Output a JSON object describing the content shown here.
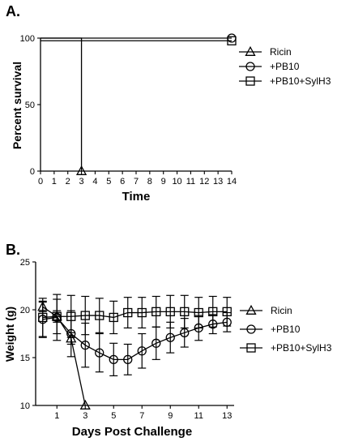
{
  "chart_data": [
    {
      "panel_label": "A.",
      "type": "line",
      "xlabel": "Time",
      "ylabel": "Percent survival",
      "xlim": [
        0,
        14
      ],
      "ylim": [
        0,
        100
      ],
      "x_ticks": [
        0,
        1,
        2,
        3,
        4,
        5,
        6,
        7,
        8,
        9,
        10,
        11,
        12,
        13,
        14
      ],
      "y_ticks": [
        0,
        50,
        100
      ],
      "grid": false,
      "legend_position": "top-right",
      "series": [
        {
          "name": "Ricin",
          "marker": "triangle",
          "x": [
            0,
            3,
            3
          ],
          "y": [
            100,
            100,
            0
          ]
        },
        {
          "name": "+PB10",
          "marker": "circle",
          "x": [
            0,
            14
          ],
          "y": [
            100,
            100
          ]
        },
        {
          "name": "+PB10+SylH3",
          "marker": "square",
          "x": [
            0,
            14
          ],
          "y": [
            98,
            98
          ]
        }
      ]
    },
    {
      "panel_label": "B.",
      "type": "line",
      "xlabel": "Days Post  Challenge",
      "ylabel": "Weight (g)",
      "xlim": [
        -0.5,
        13.5
      ],
      "ylim": [
        10,
        25
      ],
      "x_ticks": [
        1,
        3,
        5,
        7,
        9,
        11,
        13
      ],
      "y_ticks": [
        10,
        15,
        20,
        25
      ],
      "grid": false,
      "legend_position": "right",
      "series": [
        {
          "name": "Ricin",
          "marker": "triangle",
          "x": [
            0,
            1,
            2,
            3
          ],
          "y": [
            20.3,
            19.3,
            17.0,
            10.0
          ],
          "err": [
            0.5,
            0.6,
            0.6,
            0
          ]
        },
        {
          "name": "+PB10",
          "marker": "circle",
          "x": [
            0,
            1,
            2,
            3,
            4,
            5,
            6,
            7,
            8,
            9,
            10,
            11,
            12,
            13
          ],
          "y": [
            19.0,
            19.2,
            17.5,
            16.3,
            15.5,
            14.8,
            14.8,
            15.7,
            16.5,
            17.1,
            17.6,
            18.1,
            18.5,
            18.7
          ],
          "err": [
            1.9,
            2.4,
            2.4,
            2.3,
            2.0,
            1.7,
            1.6,
            1.8,
            1.7,
            1.6,
            1.5,
            1.3,
            1.0,
            1.0
          ]
        },
        {
          "name": "+PB10+SylH3",
          "marker": "square",
          "x": [
            0,
            1,
            2,
            3,
            4,
            5,
            6,
            7,
            8,
            9,
            10,
            11,
            12,
            13
          ],
          "y": [
            19.2,
            19.3,
            19.3,
            19.4,
            19.4,
            19.2,
            19.7,
            19.7,
            19.8,
            19.8,
            19.8,
            19.7,
            19.8,
            19.8
          ],
          "err": [
            2.0,
            1.8,
            2.2,
            2.0,
            1.8,
            1.7,
            1.6,
            1.6,
            1.6,
            1.7,
            1.7,
            1.6,
            1.6,
            1.5
          ]
        }
      ]
    }
  ]
}
